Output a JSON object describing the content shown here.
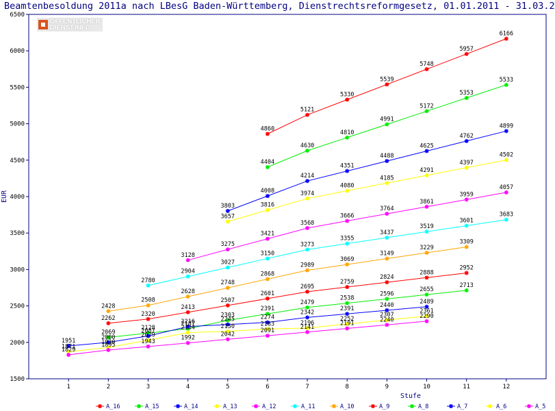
{
  "chart_data": {
    "type": "line",
    "title": "Beamtenbesoldung 2011a nach LBesG Baden-Württemberg, Dienstrechtsreformgesetz, 01.01.2011 - 31.03.2",
    "xlabel": "Stufe",
    "ylabel": "EUR",
    "x": [
      1,
      2,
      3,
      4,
      5,
      6,
      7,
      8,
      9,
      10,
      11,
      12
    ],
    "xlim": [
      0,
      13
    ],
    "ylim": [
      1500,
      6500
    ],
    "yticks": [
      1500,
      2000,
      2500,
      3000,
      3500,
      4000,
      4500,
      5000,
      5500,
      6000,
      6500
    ],
    "grid": false,
    "legend_position": "bottom",
    "series": [
      {
        "name": "A_16",
        "color": "#ff0000",
        "values": [
          null,
          null,
          null,
          null,
          null,
          4860,
          5121,
          5330,
          5539,
          5748,
          5957,
          6166
        ]
      },
      {
        "name": "A_15",
        "color": "#00ee00",
        "values": [
          null,
          null,
          null,
          null,
          null,
          4404,
          4630,
          4810,
          4991,
          5172,
          5353,
          5533
        ]
      },
      {
        "name": "A_14",
        "color": "#0000ff",
        "values": [
          null,
          null,
          null,
          null,
          3803,
          4008,
          4214,
          4351,
          4488,
          4625,
          4762,
          4899
        ]
      },
      {
        "name": "A_13",
        "color": "#ffff00",
        "values": [
          null,
          null,
          null,
          null,
          3657,
          3816,
          3974,
          4080,
          4185,
          4291,
          4397,
          4502
        ]
      },
      {
        "name": "A_12",
        "color": "#ff00ff",
        "values": [
          null,
          null,
          null,
          3128,
          3275,
          3421,
          3568,
          3666,
          3764,
          3861,
          3959,
          4057
        ]
      },
      {
        "name": "A_11",
        "color": "#00ffff",
        "values": [
          null,
          null,
          2780,
          2904,
          3027,
          3150,
          3273,
          3355,
          3437,
          3519,
          3601,
          3683
        ]
      },
      {
        "name": "A_10",
        "color": "#ffa500",
        "values": [
          null,
          2428,
          2508,
          2628,
          2748,
          2868,
          2989,
          3069,
          3149,
          3229,
          3309,
          null
        ]
      },
      {
        "name": "A_9",
        "color": "#ff0000",
        "values": [
          null,
          2262,
          2320,
          2413,
          2507,
          2601,
          2695,
          2759,
          2824,
          2888,
          2952,
          null
        ]
      },
      {
        "name": "A_8",
        "color": "#00ee00",
        "values": [
          null,
          2069,
          2128,
          2187,
          2303,
          2391,
          2479,
          2538,
          2596,
          2655,
          2713,
          null
        ]
      },
      {
        "name": "A_7",
        "color": "#0000ff",
        "values": [
          1951,
          2000,
          2087,
          2216,
          2245,
          2274,
          2342,
          2391,
          2440,
          2489,
          null,
          null
        ]
      },
      {
        "name": "A_6",
        "color": "#ffff00",
        "values": [
          1871,
          1930,
          2029,
          2134,
          2150,
          2183,
          2196,
          2252,
          2307,
          2361,
          null,
          null
        ]
      },
      {
        "name": "A_5",
        "color": "#ff00ff",
        "values": [
          1829,
          1895,
          1943,
          1992,
          2042,
          2091,
          2141,
          2191,
          2240,
          2290,
          null,
          null
        ]
      }
    ]
  },
  "logo": {
    "line1": "ÖFFENTLICHER",
    "line2": "DIENST.INFO"
  }
}
